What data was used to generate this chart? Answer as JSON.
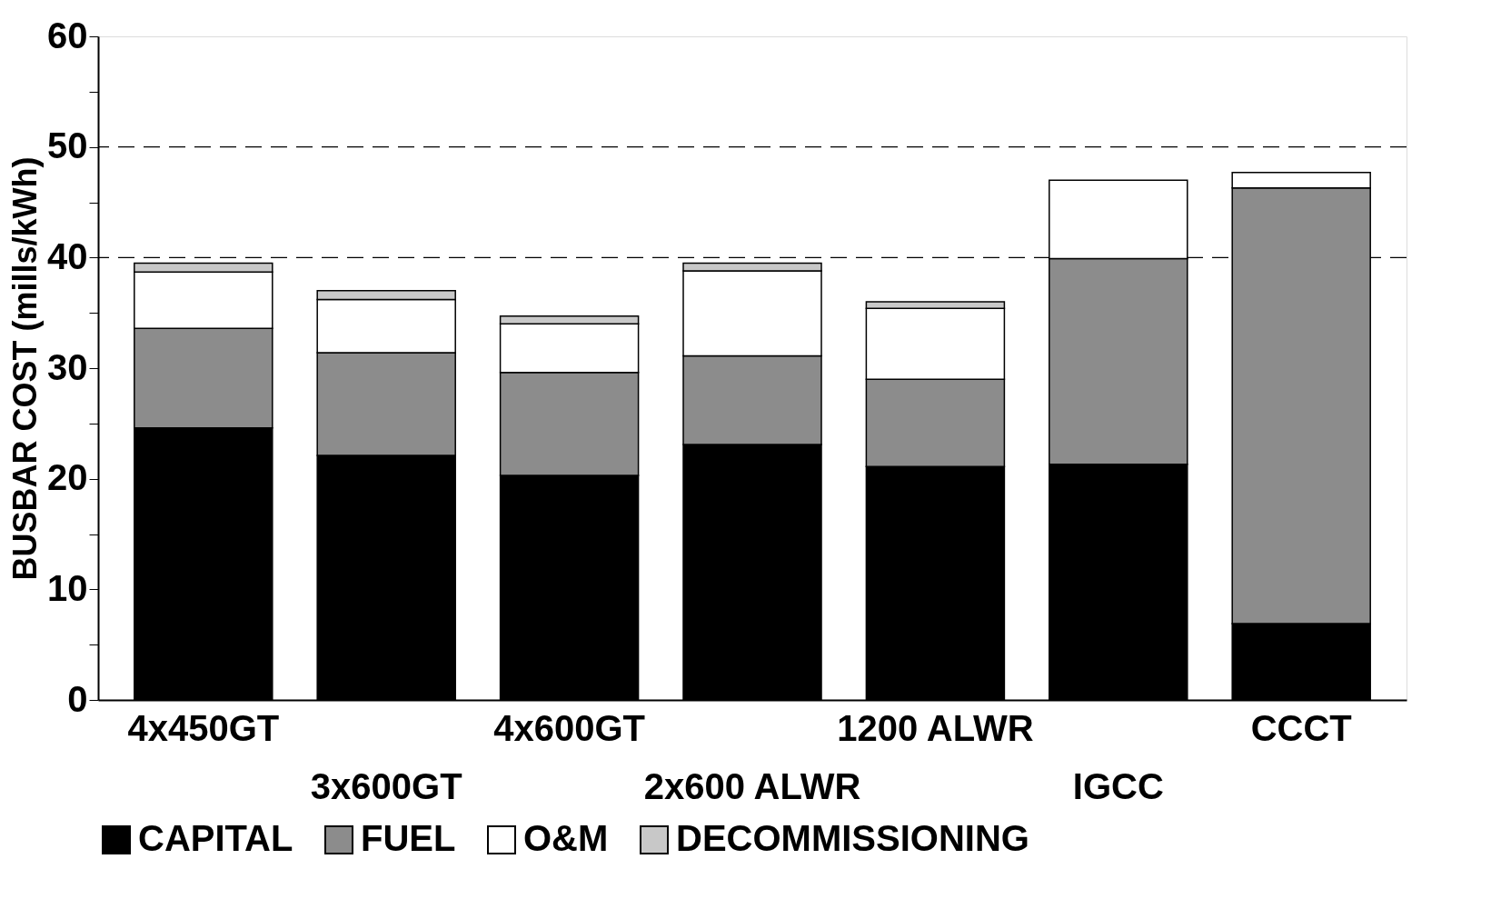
{
  "chart_data": {
    "type": "bar",
    "stacked": true,
    "ylabel": "BUSBAR COST (mills/kWh)",
    "categories": [
      "4x450GT",
      "3x600GT",
      "4x600GT",
      "2x600 ALWR",
      "1200 ALWR",
      "IGCC",
      "CCCT"
    ],
    "series": [
      {
        "name": "CAPITAL",
        "color": "#000000",
        "values": [
          24.6,
          22.1,
          20.3,
          23.1,
          21.1,
          21.3,
          6.9
        ]
      },
      {
        "name": "FUEL",
        "color": "#8c8c8c",
        "values": [
          9.0,
          9.3,
          9.3,
          8.0,
          7.9,
          18.6,
          39.4
        ]
      },
      {
        "name": "O&M",
        "color": "#ffffff",
        "values": [
          5.1,
          4.8,
          4.4,
          7.7,
          6.4,
          7.1,
          1.4
        ]
      },
      {
        "name": "DECOMMISSIONING",
        "color": "#c8c8c8",
        "values": [
          0.8,
          0.8,
          0.7,
          0.7,
          0.6,
          null,
          null
        ]
      }
    ],
    "ylim": [
      0,
      60
    ],
    "yticks": [
      0,
      {
        "value": 5,
        "label": null
      },
      10,
      {
        "value": 15,
        "label": null
      },
      20,
      {
        "value": 25,
        "label": null
      },
      30,
      {
        "value": 35,
        "label": null
      },
      40,
      {
        "value": 45,
        "label": null
      },
      50,
      {
        "value": 55,
        "label": null
      },
      60
    ],
    "ref_lines": [
      {
        "axis": "y",
        "value": 40,
        "line_style": "dashed"
      },
      {
        "axis": "y",
        "value": 50,
        "line_style": "dashed"
      }
    ],
    "grid": false,
    "legend": "bottom"
  }
}
